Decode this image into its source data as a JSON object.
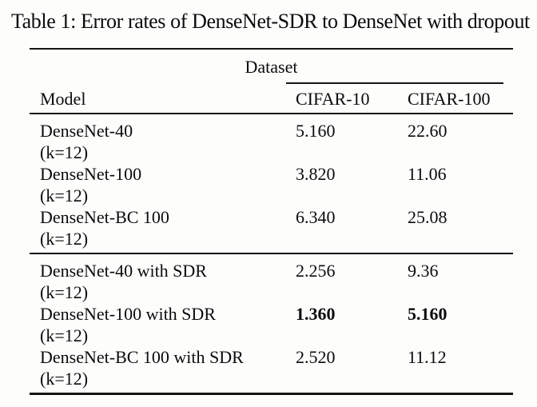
{
  "title": "Table 1: Error rates of DenseNet-SDR to DenseNet with dropout",
  "table": {
    "group_header": "Dataset",
    "columns": {
      "model": "Model",
      "cifar10": "CIFAR-10",
      "cifar100": "CIFAR-100"
    },
    "groups": [
      {
        "rows": [
          {
            "model": "DenseNet-40",
            "variant": "(k=12)",
            "cifar10": "5.160",
            "cifar100": "22.60"
          },
          {
            "model": "DenseNet-100",
            "variant": "(k=12)",
            "cifar10": "3.820",
            "cifar100": "11.06"
          },
          {
            "model": "DenseNet-BC 100",
            "variant": "(k=12)",
            "cifar10": "6.340",
            "cifar100": "25.08"
          }
        ]
      },
      {
        "rows": [
          {
            "model": "DenseNet-40 with SDR",
            "variant": "(k=12)",
            "cifar10": "2.256",
            "cifar100": "9.36"
          },
          {
            "model": "DenseNet-100 with SDR",
            "variant": "(k=12)",
            "cifar10": "1.360",
            "cifar100": "5.160"
          },
          {
            "model": "DenseNet-BC 100 with SDR",
            "variant": "(k=12)",
            "cifar10": "2.520",
            "cifar100": "11.12"
          }
        ]
      }
    ]
  },
  "colors": {
    "text": "#0b0b0b",
    "rule": "#151515",
    "background": "#fdfdfc"
  }
}
